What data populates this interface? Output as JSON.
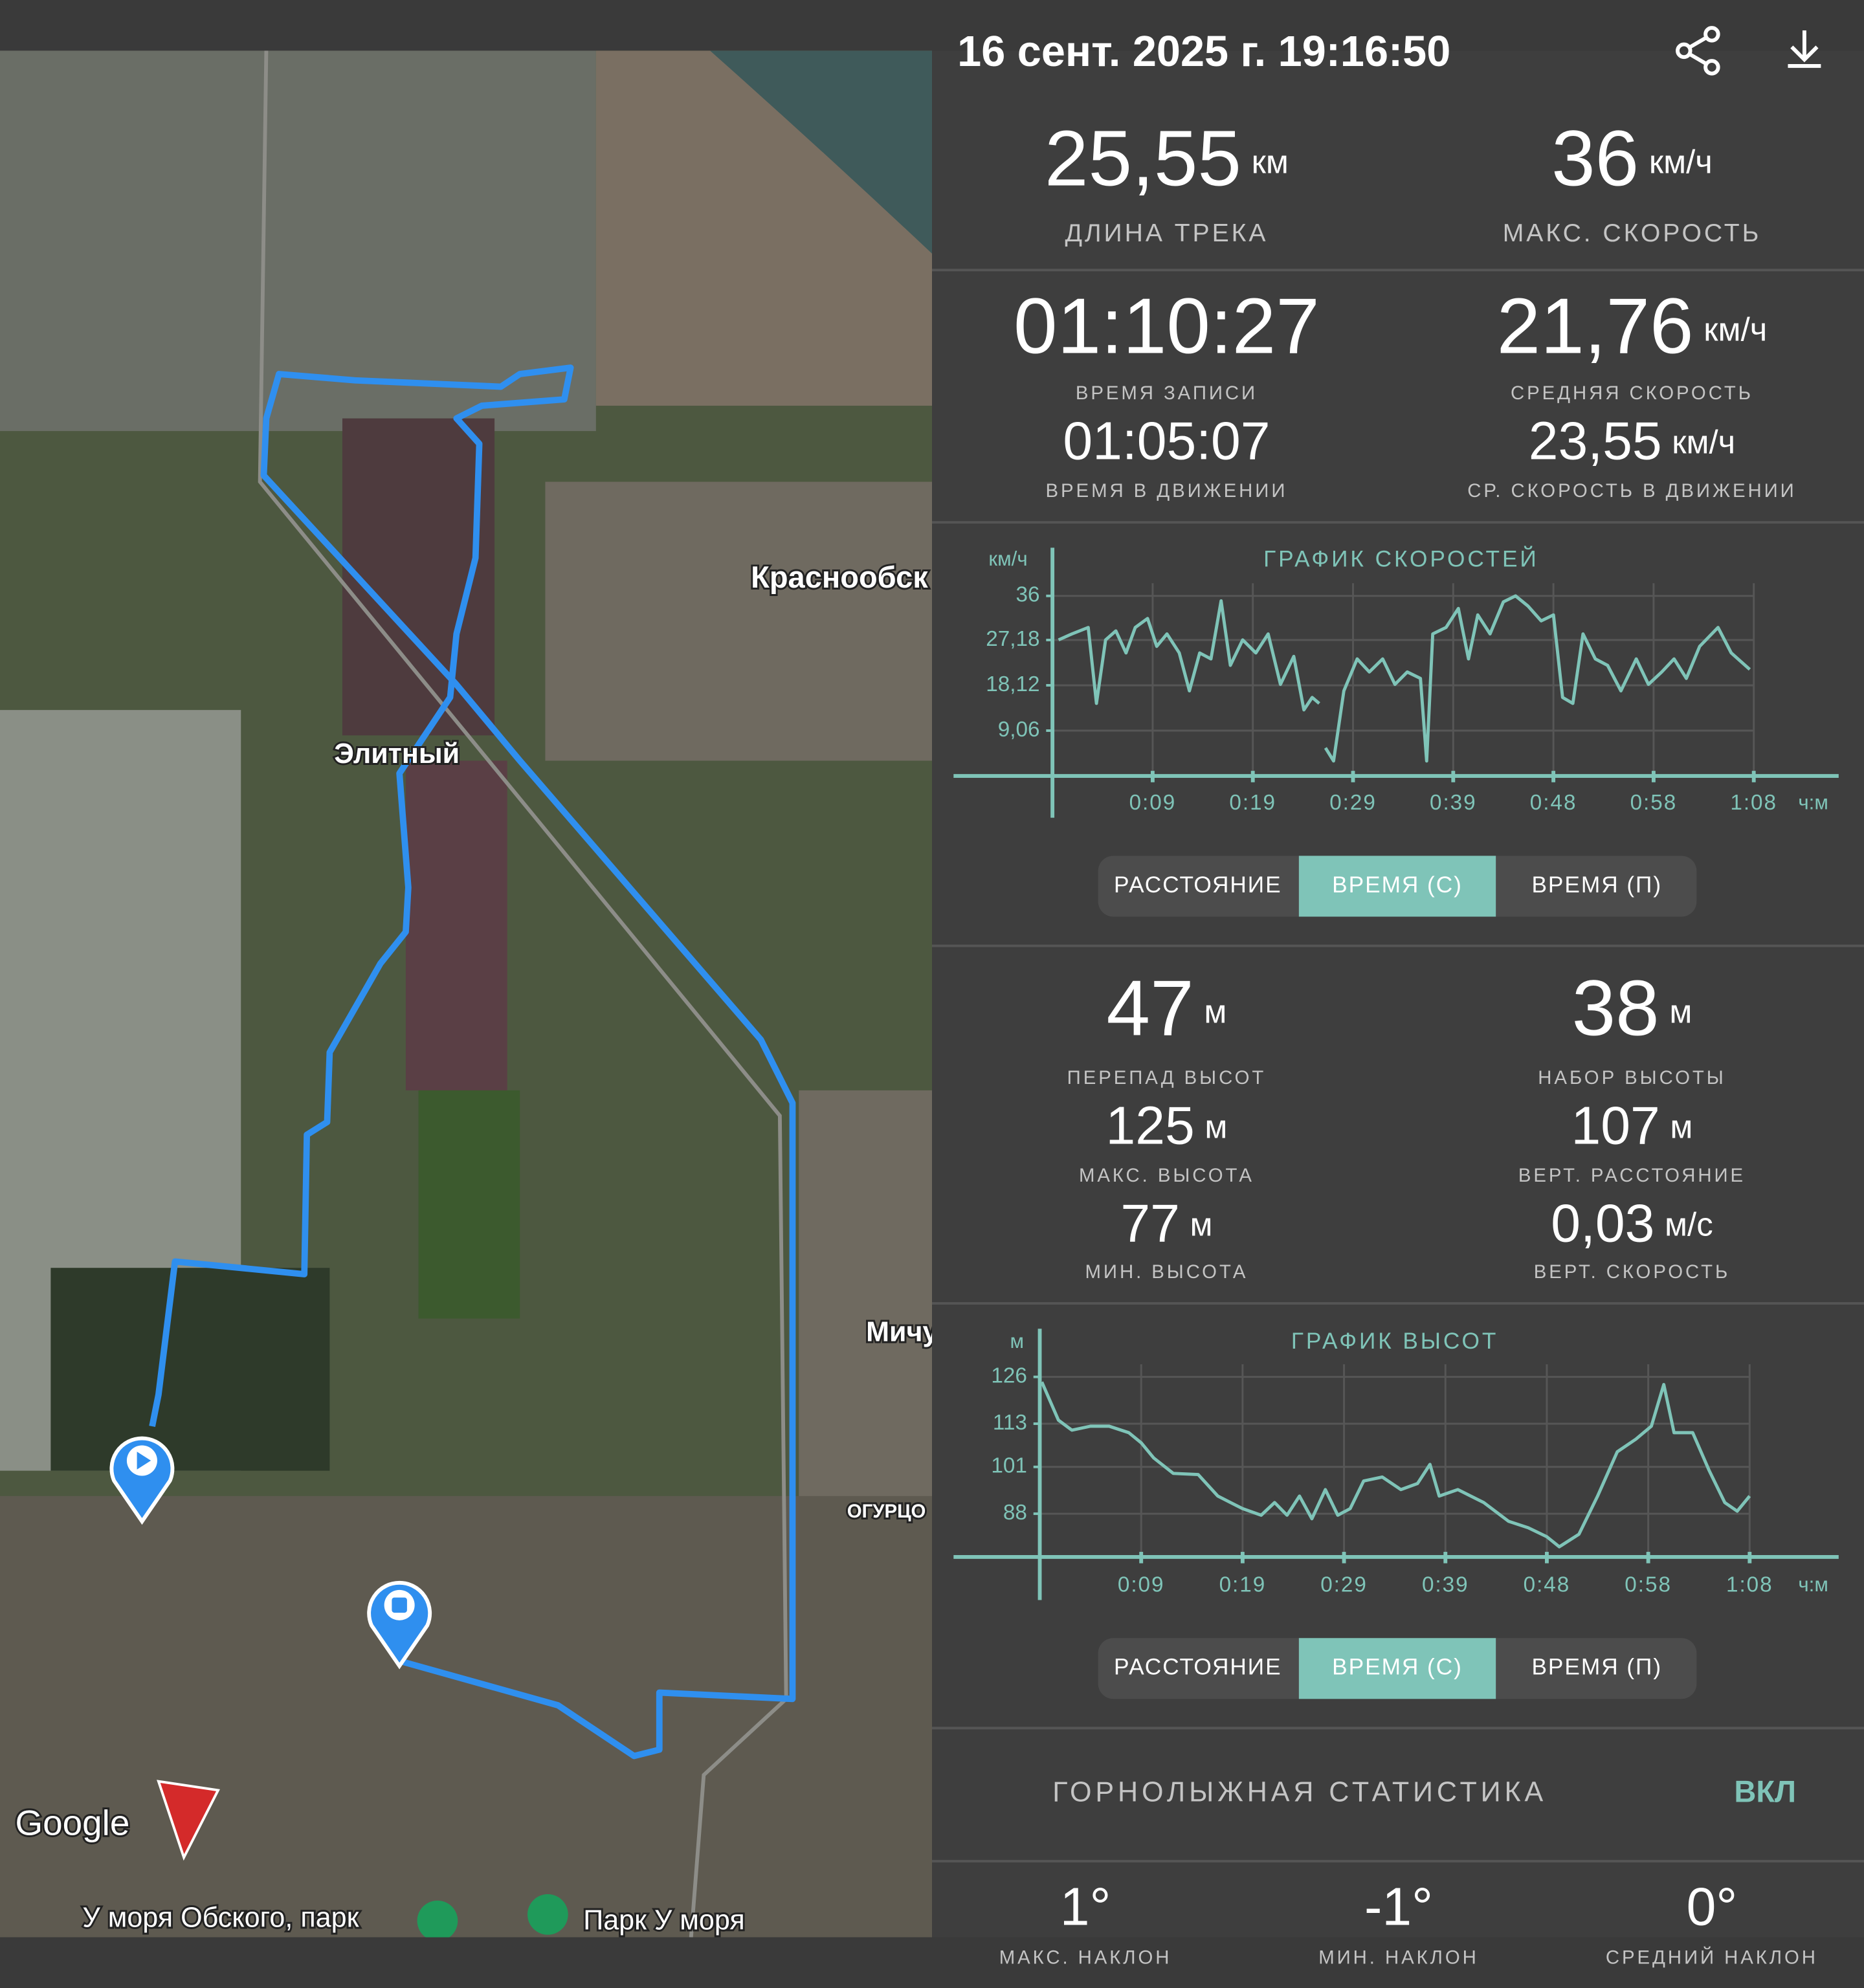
{
  "header": {
    "title": "16 сент. 2025 г. 19:16:50"
  },
  "map": {
    "labels": [
      "Краснообск",
      "Элитный",
      "Мичу",
      "ОГУРЦО",
      "У моря Обского, парк",
      "Парк У моря"
    ],
    "logo": "Google"
  },
  "track_stats": [
    {
      "value": "25,55",
      "unit": "км",
      "label": "ДЛИНА ТРЕКА"
    },
    {
      "value": "36",
      "unit": "км/ч",
      "label": "МАКС. СКОРОСТЬ"
    },
    {
      "value": "01:10:27",
      "label": "ВРЕМЯ ЗАПИСИ"
    },
    {
      "value": "21,76",
      "unit": "км/ч",
      "label": "СРЕДНЯЯ СКОРОСТЬ"
    },
    {
      "value": "01:05:07",
      "label": "ВРЕМЯ В ДВИЖЕНИИ"
    },
    {
      "value": "23,55",
      "unit": "км/ч",
      "label": "СР. СКОРОСТЬ В ДВИЖЕНИИ"
    }
  ],
  "speed_tabs": {
    "options": [
      "РАССТОЯНИЕ",
      "ВРЕМЯ (С)",
      "ВРЕМЯ (П)"
    ],
    "selected": 1
  },
  "elevation_stats": [
    {
      "value": "47",
      "unit": "м",
      "label": "ПЕРЕПАД ВЫСОТ"
    },
    {
      "value": "38",
      "unit": "м",
      "label": "НАБОР ВЫСОТЫ"
    },
    {
      "value": "125",
      "unit": "м",
      "label": "МАКС. ВЫСОТА"
    },
    {
      "value": "107",
      "unit": "м",
      "label": "ВЕРТ. РАССТОЯНИЕ"
    },
    {
      "value": "77",
      "unit": "м",
      "label": "МИН. ВЫСОТА"
    },
    {
      "value": "0,03",
      "unit": "м/с",
      "label": "ВЕРТ. СКОРОСТЬ"
    }
  ],
  "elevation_tabs": {
    "options": [
      "РАССТОЯНИЕ",
      "ВРЕМЯ (С)",
      "ВРЕМЯ (П)"
    ],
    "selected": 1
  },
  "ski": {
    "title": "ГОРНОЛЫЖНАЯ СТАТИСТИКА",
    "toggle": "ВКЛ",
    "stats": [
      {
        "value": "1°",
        "label": "МАКС. НАКЛОН"
      },
      {
        "value": "-1°",
        "label": "МИН. НАКЛОН"
      },
      {
        "value": "0°",
        "label": "СРЕДНИЙ НАКЛОН"
      }
    ]
  },
  "chart_data": [
    {
      "type": "line",
      "title": "ГРАФИК СКОРОСТЕЙ",
      "y_unit": "км/ч",
      "x_unit": "ч:м",
      "color": "#7fc4b8",
      "grid": true,
      "xlim": [
        0,
        76.9
      ],
      "ylim": [
        0,
        36
      ],
      "xticks": [
        {
          "value": 9.8,
          "label": "0:09"
        },
        {
          "value": 19.6,
          "label": "0:19"
        },
        {
          "value": 29.4,
          "label": "0:29"
        },
        {
          "value": 39.2,
          "label": "0:39"
        },
        {
          "value": 49,
          "label": "0:48"
        },
        {
          "value": 58.8,
          "label": "0:58"
        },
        {
          "value": 68.6,
          "label": "1:08"
        }
      ],
      "yticks": [
        {
          "value": 9.06,
          "label": "9,06"
        },
        {
          "value": 18.12,
          "label": "18,12"
        },
        {
          "value": 27.18,
          "label": "27,18"
        },
        36
      ],
      "x": [
        0.6,
        1.9,
        3.5,
        4.3,
        5.2,
        6.2,
        7.2,
        8.1,
        9.3,
        10.2,
        11.2,
        12.4,
        13.4,
        14.4,
        15.5,
        16.5,
        17.4,
        18.6,
        19.9,
        21.1,
        22.3,
        23.6,
        24.6,
        25.4,
        26.1,
        26.5,
        26.7,
        27.5,
        28.5,
        29.8,
        31,
        32.3,
        33.5,
        34.7,
        36,
        36.6,
        37.2,
        38.5,
        39.7,
        40.7,
        41.6,
        42.8,
        44.1,
        45.3,
        46.5,
        47.8,
        49,
        49.9,
        50.9,
        51.9,
        53.1,
        54.3,
        55.6,
        57.1,
        58.3,
        59.6,
        60.8,
        62,
        63.3,
        65.1,
        66.4,
        68.2
      ],
      "values": [
        27.2,
        28.4,
        29.7,
        14.5,
        27.2,
        29,
        24.6,
        29.7,
        31.5,
        25.9,
        28.4,
        24.6,
        17,
        24.6,
        23.4,
        35,
        22.1,
        27.2,
        24.6,
        28.4,
        18.3,
        23.9,
        13.2,
        15.7,
        14.5,
        null,
        5.6,
        3,
        17,
        23.4,
        20.8,
        23.4,
        18.3,
        20.8,
        19.5,
        3,
        28.4,
        29.7,
        33.5,
        23.4,
        32.2,
        28.4,
        34.8,
        36,
        34,
        31,
        32.2,
        15.7,
        14.5,
        28.4,
        23.4,
        22.1,
        17,
        23.4,
        18.3,
        20.8,
        23.4,
        19.5,
        25.9,
        29.7,
        24.6,
        21.3
      ]
    },
    {
      "type": "line",
      "title": "ГРАФИК ВЫСОТ",
      "y_unit": "м",
      "x_unit": "ч:м",
      "color": "#7fc4b8",
      "grid": true,
      "xlim": [
        0,
        77.2
      ],
      "ylim": [
        76,
        126
      ],
      "xticks": [
        {
          "value": 9.8,
          "label": "0:09"
        },
        {
          "value": 19.6,
          "label": "0:19"
        },
        {
          "value": 29.4,
          "label": "0:29"
        },
        {
          "value": 39.2,
          "label": "0:39"
        },
        {
          "value": 49,
          "label": "0:48"
        },
        {
          "value": 58.8,
          "label": "0:58"
        },
        {
          "value": 68.6,
          "label": "1:08"
        }
      ],
      "yticks": [
        88,
        101,
        113,
        126
      ],
      "x": [
        0.2,
        1.8,
        3.1,
        4.9,
        6.7,
        8.6,
        9.8,
        11,
        12.9,
        15.3,
        17.2,
        19.6,
        21.4,
        22.7,
        23.9,
        25.1,
        26.3,
        27.6,
        28.8,
        30,
        31.3,
        33.1,
        34.9,
        36.5,
        37.7,
        38.6,
        40.4,
        42.9,
        45.3,
        47.2,
        49,
        50.2,
        52.1,
        53.9,
        55.8,
        57.6,
        59.1,
        60.3,
        61.3,
        63.1,
        64.7,
        66.2,
        67.4,
        68.6
      ],
      "values": [
        124.6,
        114,
        111.2,
        112.3,
        112.3,
        110.5,
        107.7,
        103.5,
        99.2,
        98.9,
        92.9,
        89.4,
        87.6,
        91.1,
        87.6,
        92.9,
        86.6,
        94.7,
        87.6,
        89.4,
        97.1,
        98.2,
        94.7,
        96.4,
        101.7,
        92.9,
        94.7,
        91.1,
        85.9,
        84.1,
        81.6,
        78.8,
        82.3,
        92.9,
        105.2,
        108.7,
        112.3,
        123.9,
        110.5,
        110.5,
        99.9,
        91.1,
        88.7,
        92.9
      ]
    }
  ]
}
